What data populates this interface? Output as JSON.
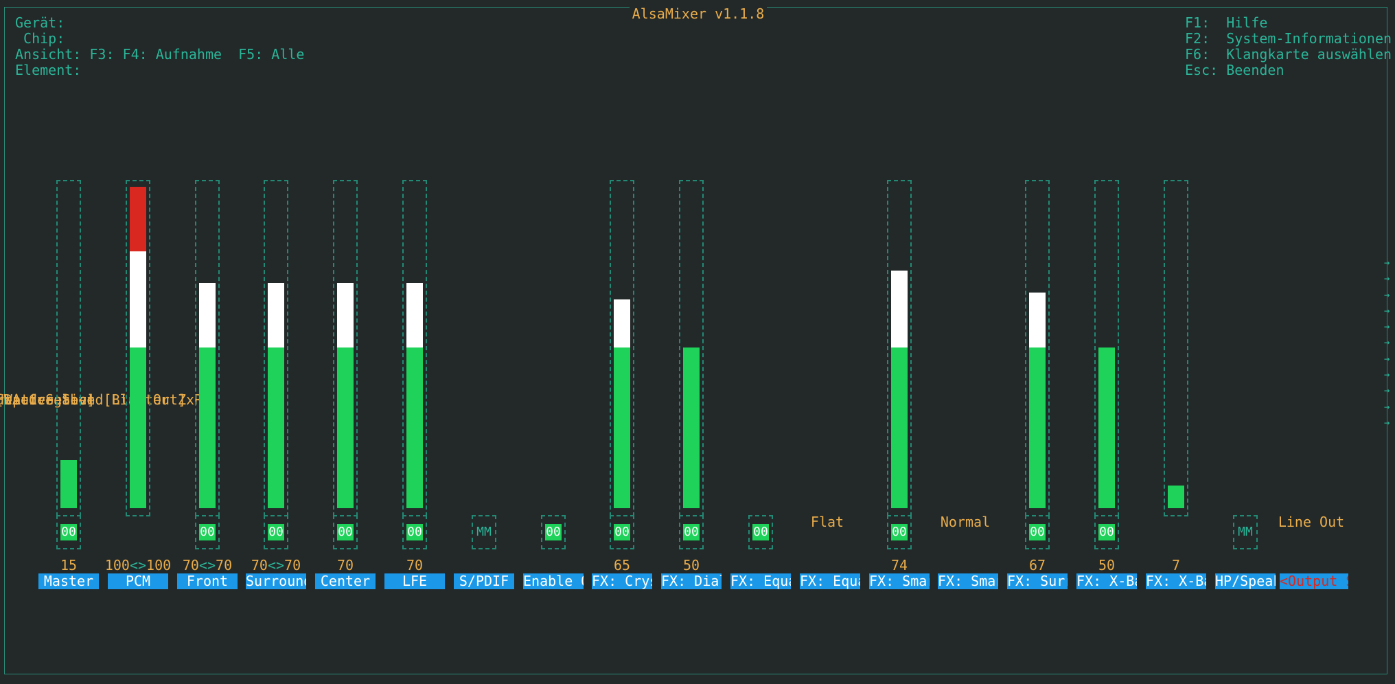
{
  "title": "AlsaMixer v1.1.8",
  "info": {
    "device_label": "Gerät:",
    "device": "HDA Creative",
    "chip_label": "Chip:",
    "chip": "Creative Sound Blaster ZxR",
    "view_label": "Ansicht:",
    "view_f3": "F3:",
    "view_playback": "[Wiedergabe]",
    "view_f4": "F4: Aufnahme",
    "view_f5": "F5: Alle",
    "element_label": "Element:",
    "element": "Output Select [Line Out]"
  },
  "keys": [
    {
      "key": "F1:",
      "label": "Hilfe"
    },
    {
      "key": "F2:",
      "label": "System-Informationen"
    },
    {
      "key": "F6:",
      "label": "Klangkarte auswählen"
    },
    {
      "key": "Esc:",
      "label": "Beenden"
    }
  ],
  "colors": {
    "accent": "#2ab598",
    "value": "#e9ad4b",
    "bar_green": "#1ed25a",
    "bar_white": "#ffffff",
    "bar_red": "#d9281f",
    "label_bg": "#1b99e8"
  },
  "channels": [
    {
      "name": "Master",
      "volume": 15,
      "value_text": "15",
      "switch": "00"
    },
    {
      "name": "PCM",
      "volume": 100,
      "value_left": "100",
      "value_sep": "<>",
      "value_right": "100",
      "switch": ""
    },
    {
      "name": "Front",
      "volume": 70,
      "value_left": "70",
      "value_sep": "<>",
      "value_right": "70",
      "switch": "00"
    },
    {
      "name": "Surround",
      "volume": 70,
      "value_left": "70",
      "value_sep": "<>",
      "value_right": "70",
      "switch": "00"
    },
    {
      "name": "Center",
      "volume": 70,
      "value_text": "70",
      "switch": "00"
    },
    {
      "name": "LFE",
      "volume": 70,
      "value_text": "70",
      "switch": "00"
    },
    {
      "name": "S/PDIF",
      "switch_off": "MM"
    },
    {
      "name": "Enable O",
      "switch": "00"
    },
    {
      "name": "FX: Crys",
      "volume": 65,
      "value_text": "65",
      "switch": "00"
    },
    {
      "name": "FX: Dial",
      "volume": 50,
      "value_text": "50",
      "switch": "00"
    },
    {
      "name": "FX: Equa",
      "switch": "00"
    },
    {
      "name": "FX: Equa",
      "enum_value": "Flat"
    },
    {
      "name": "FX: Smar",
      "volume": 74,
      "value_text": "74",
      "switch": "00"
    },
    {
      "name": "FX: Smar",
      "enum_value": "Normal"
    },
    {
      "name": "FX: Surr",
      "volume": 67,
      "value_text": "67",
      "switch": "00"
    },
    {
      "name": "FX: X-Ba",
      "volume": 50,
      "value_text": "50",
      "switch": "00"
    },
    {
      "name": "FX: X-Ba",
      "volume": 7,
      "value_text": "7",
      "noswitch": true
    },
    {
      "name": "HP/Speak",
      "switch_off": "MM"
    },
    {
      "name": "Output S",
      "enum_value": "Line Out",
      "selected": true
    }
  ]
}
